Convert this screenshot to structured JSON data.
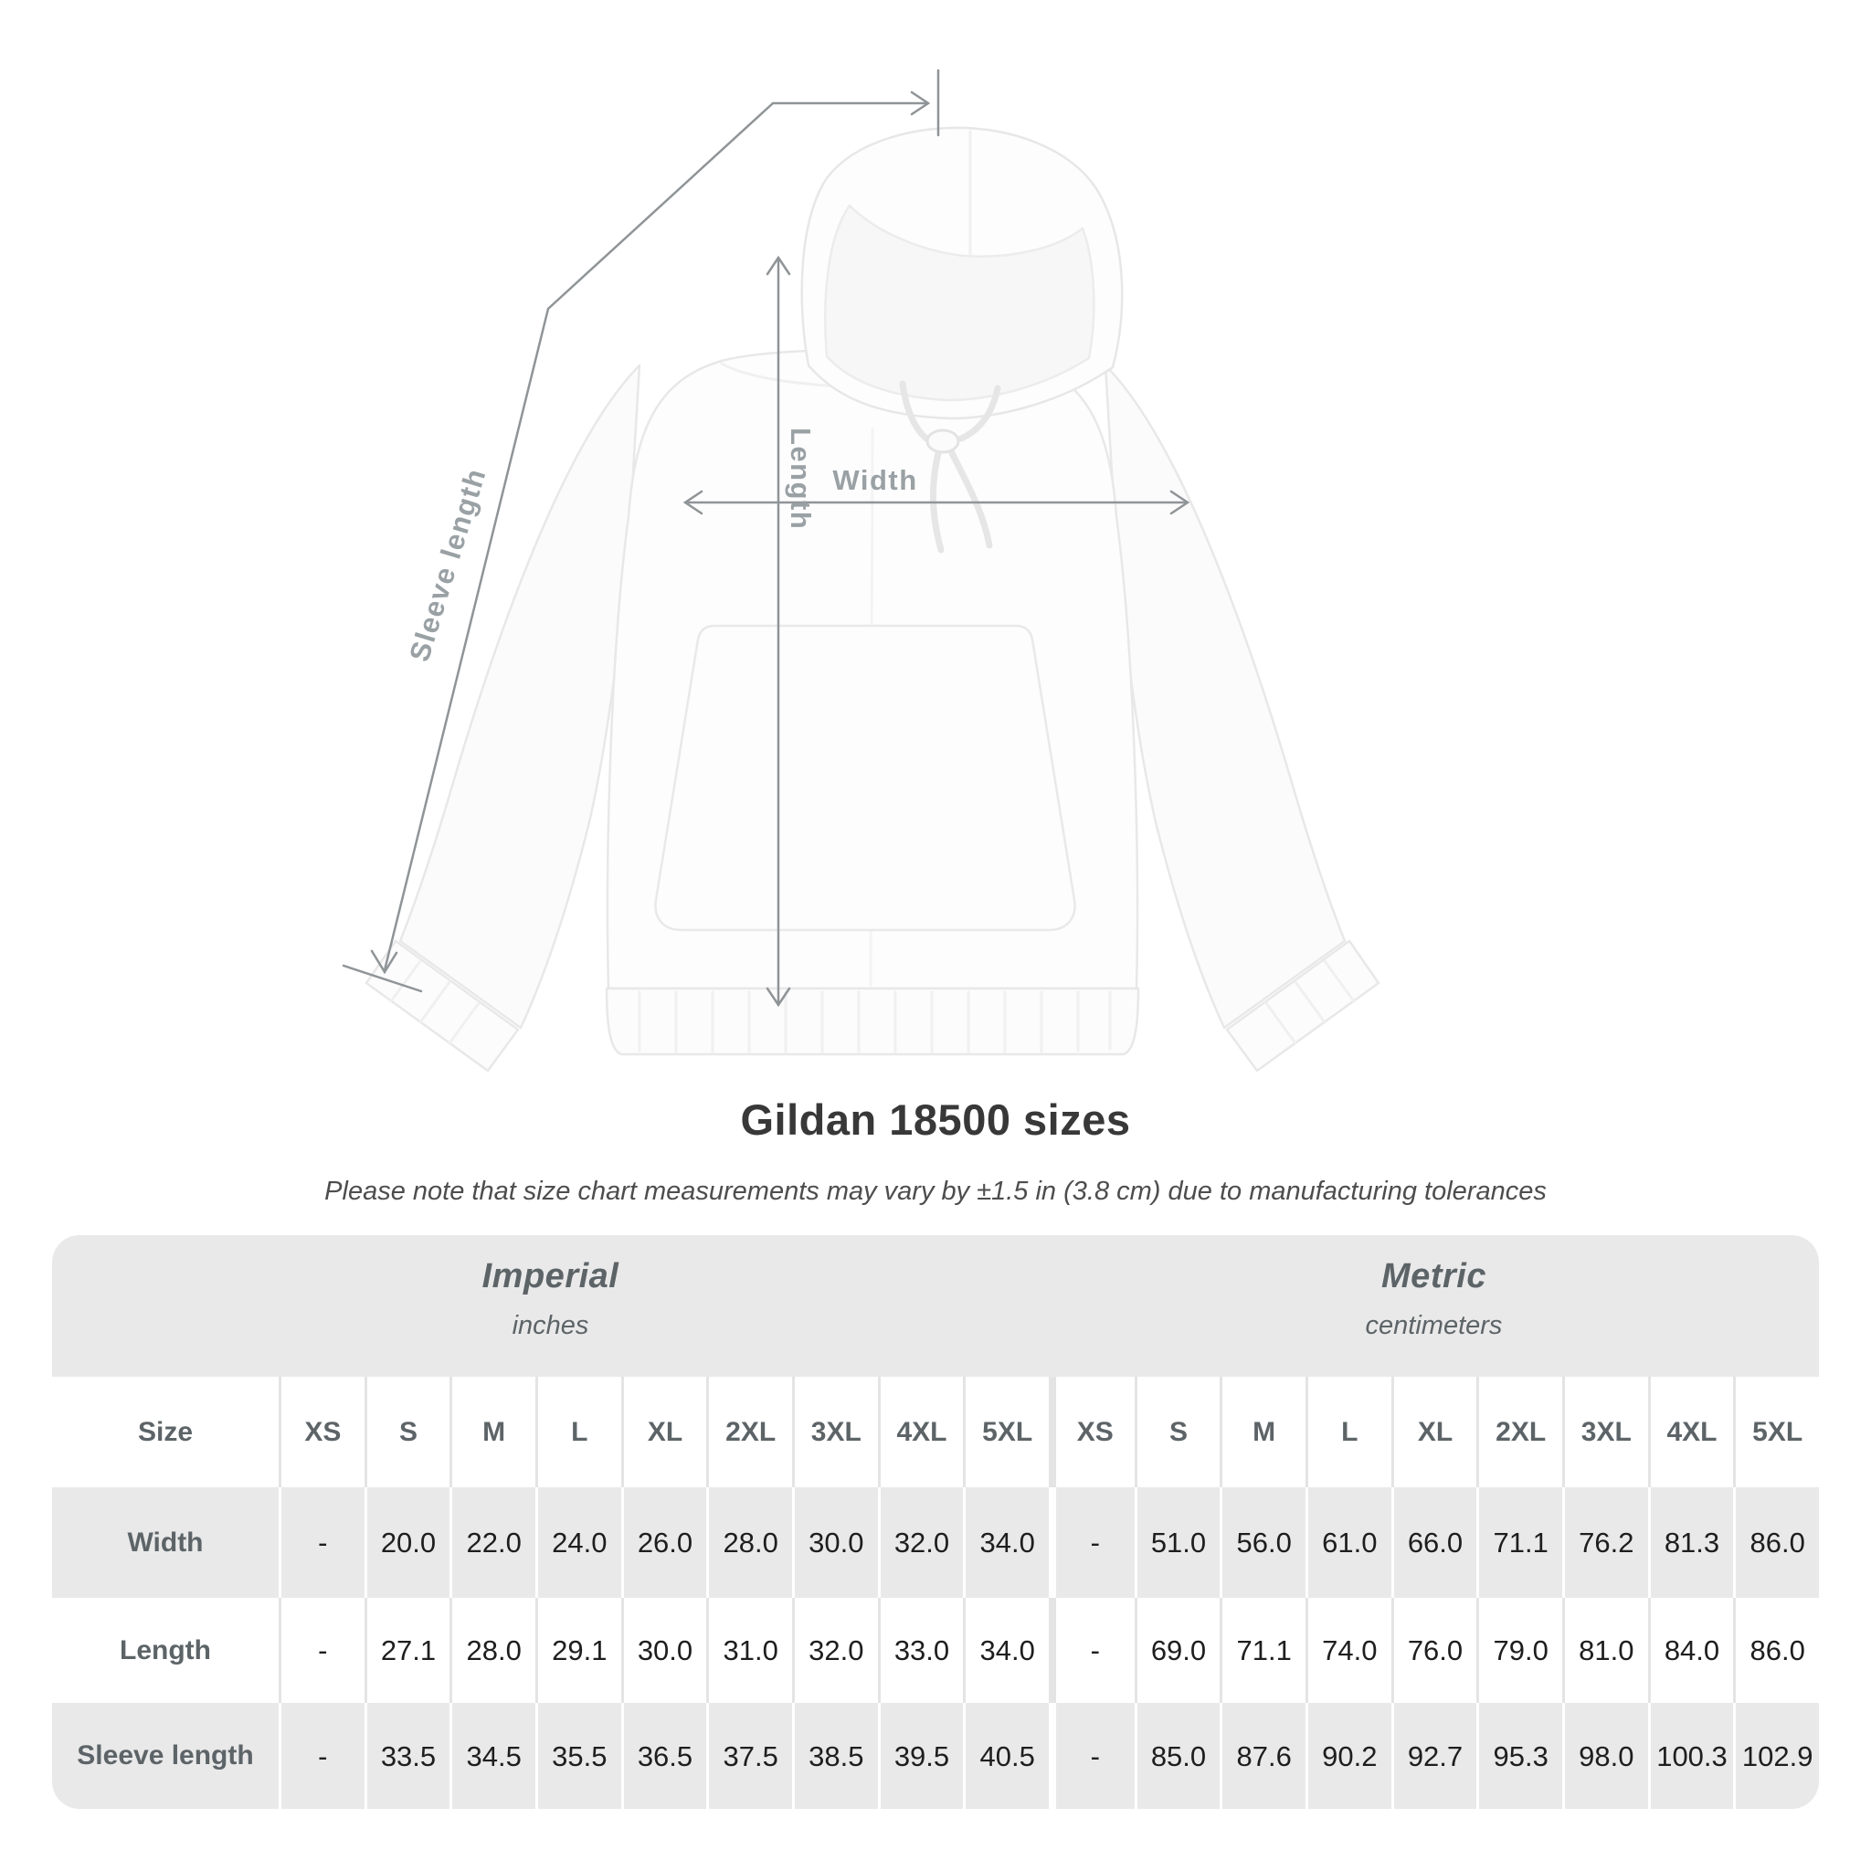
{
  "diagram": {
    "length_label": "Length",
    "width_label": "Width",
    "sleeve_label": "Sleeve length"
  },
  "title": "Gildan 18500 sizes",
  "note": "Please note that size chart measurements may vary by ±1.5 in (3.8 cm) due to manufacturing tolerances",
  "table": {
    "size_label": "Size",
    "sections": [
      {
        "name": "Imperial",
        "unit": "inches"
      },
      {
        "name": "Metric",
        "unit": "centimeters"
      }
    ],
    "sizes": [
      "XS",
      "S",
      "M",
      "L",
      "XL",
      "2XL",
      "3XL",
      "4XL",
      "5XL"
    ],
    "rows": [
      {
        "label": "Width",
        "imperial": [
          "-",
          "20.0",
          "22.0",
          "24.0",
          "26.0",
          "28.0",
          "30.0",
          "32.0",
          "34.0"
        ],
        "metric": [
          "-",
          "51.0",
          "56.0",
          "61.0",
          "66.0",
          "71.1",
          "76.2",
          "81.3",
          "86.0"
        ]
      },
      {
        "label": "Length",
        "imperial": [
          "-",
          "27.1",
          "28.0",
          "29.1",
          "30.0",
          "31.0",
          "32.0",
          "33.0",
          "34.0"
        ],
        "metric": [
          "-",
          "69.0",
          "71.1",
          "74.0",
          "76.0",
          "79.0",
          "81.0",
          "84.0",
          "86.0"
        ]
      },
      {
        "label": "Sleeve length",
        "imperial": [
          "-",
          "33.5",
          "34.5",
          "35.5",
          "36.5",
          "37.5",
          "38.5",
          "39.5",
          "40.5"
        ],
        "metric": [
          "-",
          "85.0",
          "87.6",
          "90.2",
          "92.7",
          "95.3",
          "98.0",
          "100.3",
          "102.9"
        ]
      }
    ]
  },
  "colors": {
    "table_band": "#e9e9e9",
    "header_text": "#5d6468",
    "value_text": "#1e1e1e",
    "measure_line": "#8f9497",
    "measure_label": "#9aa1a5",
    "title_text": "#383838"
  }
}
